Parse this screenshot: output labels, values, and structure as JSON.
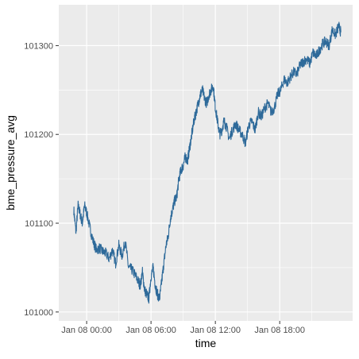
{
  "chart_data": {
    "type": "line",
    "xlabel": "time",
    "ylabel": "bme_pressure_avg",
    "x_tick_labels": [
      "Jan 08 00:00",
      "Jan 08 06:00",
      "Jan 08 12:00",
      "Jan 08 18:00"
    ],
    "x_ticks_hours": [
      0,
      6,
      12,
      18
    ],
    "y_tick_labels": [
      "101000",
      "101100",
      "101200",
      "101300"
    ],
    "y_ticks": [
      101000,
      101100,
      101200,
      101300
    ],
    "xlim_hours": [
      -2.6,
      24.8
    ],
    "ylim": [
      100990,
      101346
    ],
    "grid": true,
    "panel_background": "#EBEBEB",
    "grid_color": "#FFFFFF",
    "line_color": "#2E6A9A",
    "axis_text_color": "#4D4D4D",
    "series": [
      {
        "x": [
          -1.2,
          -1.0,
          -0.8,
          -0.6,
          -0.4,
          -0.2,
          0.0,
          0.3,
          0.6,
          0.9,
          1.2,
          1.5,
          1.8,
          2.1,
          2.4,
          2.7,
          3.0,
          3.3,
          3.6,
          3.9,
          4.2,
          4.5,
          4.8,
          5.0,
          5.2,
          5.4,
          5.6,
          5.8,
          6.0,
          6.2,
          6.4,
          6.6,
          6.8,
          7.0,
          7.2,
          7.4,
          7.6,
          7.8,
          8.0,
          8.2,
          8.4,
          8.6,
          8.8,
          9.0,
          9.2,
          9.4,
          9.6,
          9.8,
          10.0,
          10.2,
          10.4,
          10.6,
          10.8,
          11.0,
          11.2,
          11.4,
          11.6,
          11.8,
          12.0,
          12.2,
          12.4,
          12.6,
          12.8,
          13.0,
          13.3,
          13.6,
          13.9,
          14.2,
          14.5,
          14.8,
          15.1,
          15.4,
          15.7,
          16.0,
          16.3,
          16.6,
          16.9,
          17.2,
          17.5,
          17.8,
          18.1,
          18.4,
          18.7,
          19.0,
          19.3,
          19.6,
          19.9,
          20.2,
          20.5,
          20.8,
          21.1,
          21.4,
          21.7,
          22.0,
          22.3,
          22.6,
          22.9,
          23.2,
          23.5,
          23.7
        ],
        "y": [
          101115,
          101090,
          101120,
          101110,
          101100,
          101120,
          101112,
          101095,
          101080,
          101070,
          101072,
          101068,
          101066,
          101060,
          101070,
          101055,
          101075,
          101063,
          101080,
          101050,
          101048,
          101042,
          101035,
          101030,
          101045,
          101025,
          101020,
          101015,
          101040,
          101050,
          101030,
          101020,
          101015,
          101035,
          101055,
          101075,
          101085,
          101105,
          101115,
          101125,
          101130,
          101150,
          101160,
          101165,
          101175,
          101170,
          101185,
          101200,
          101215,
          101225,
          101235,
          101245,
          101250,
          101240,
          101235,
          101245,
          101250,
          101255,
          101230,
          101215,
          101200,
          101205,
          101215,
          101210,
          101195,
          101205,
          101212,
          101205,
          101200,
          101190,
          101210,
          101215,
          101205,
          101225,
          101220,
          101230,
          101235,
          101225,
          101230,
          101245,
          101250,
          101262,
          101258,
          101265,
          101270,
          101268,
          101278,
          101282,
          101285,
          101280,
          101292,
          101288,
          101295,
          101302,
          101305,
          101300,
          101318,
          101312,
          101322,
          101315
        ]
      }
    ]
  }
}
